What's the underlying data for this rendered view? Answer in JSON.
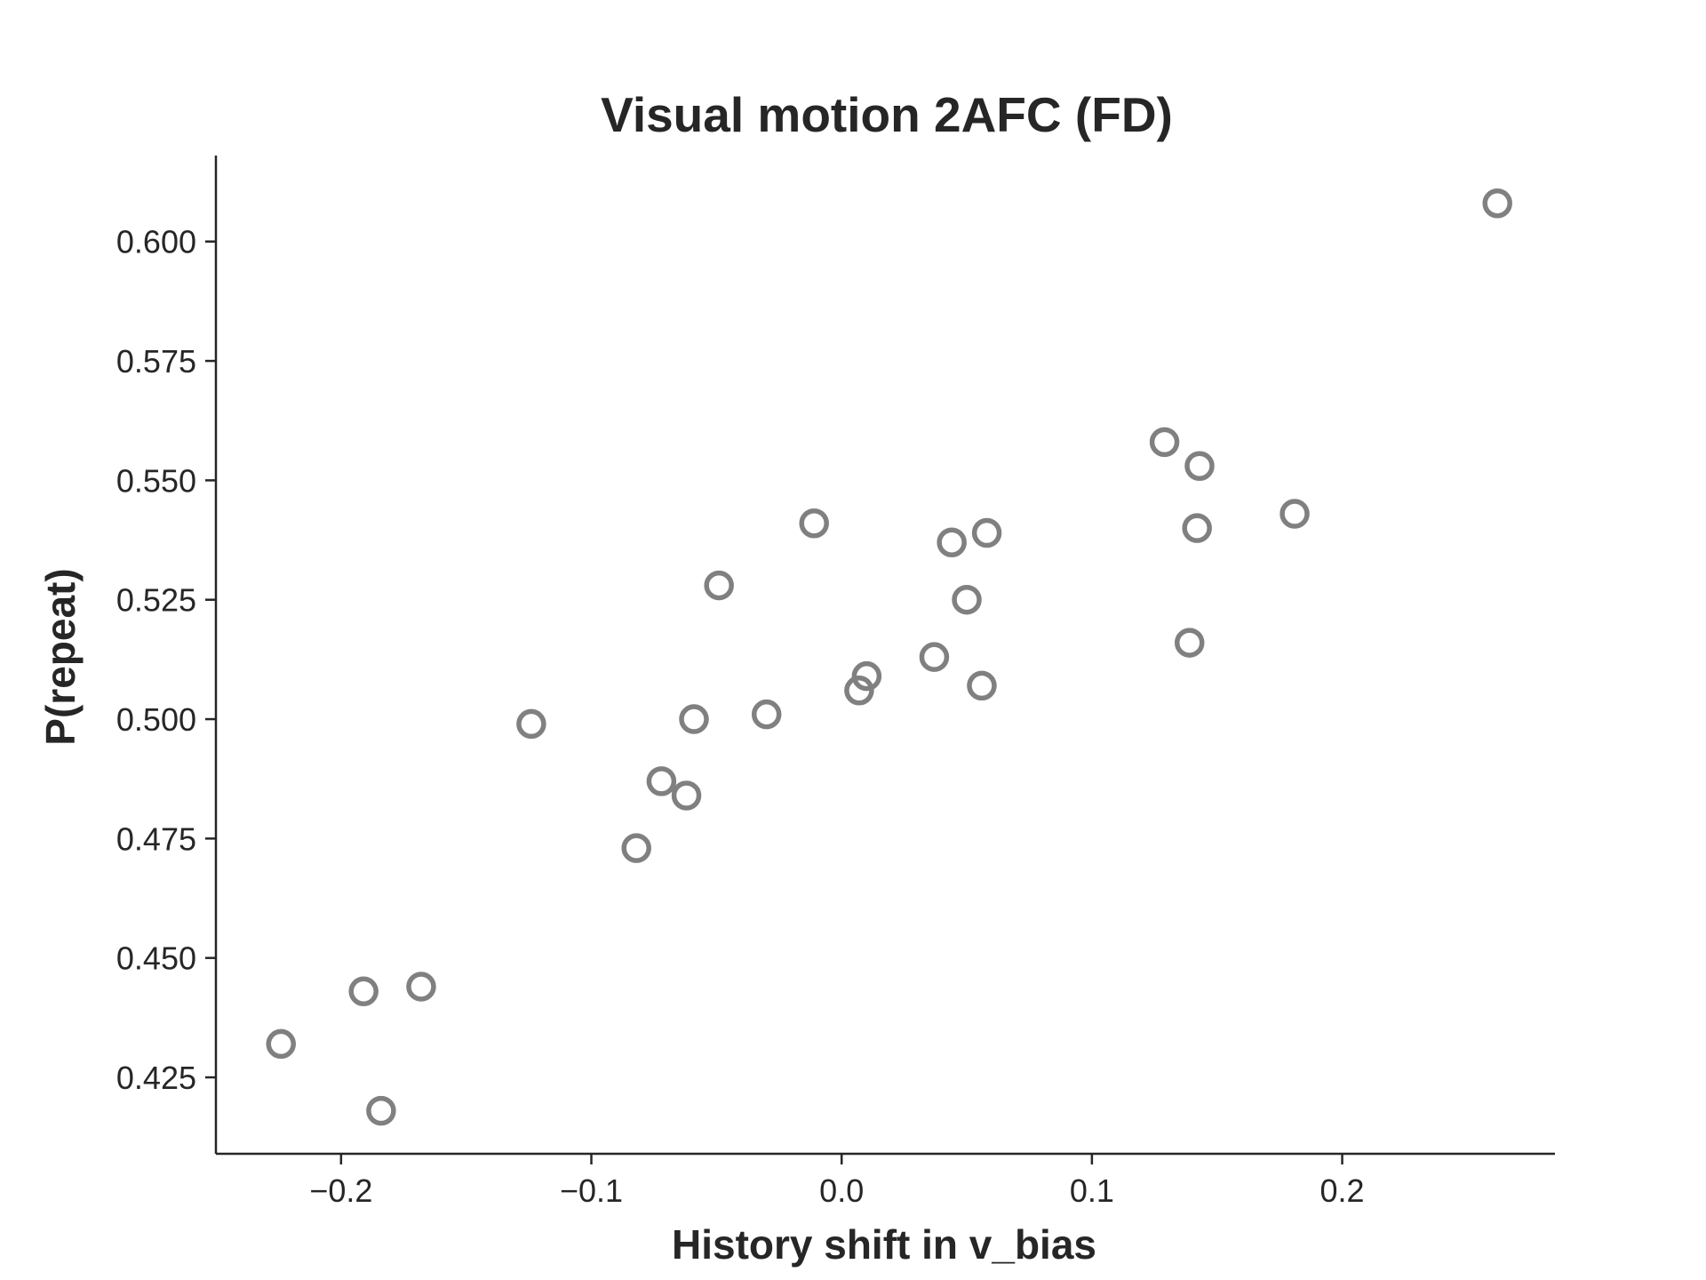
{
  "chart_data": {
    "type": "scatter",
    "title": "Visual motion 2AFC (FD)",
    "xlabel": "History shift in v_bias",
    "ylabel": "P(repeat)",
    "xlim": [
      -0.25,
      0.285
    ],
    "ylim": [
      0.409,
      0.618
    ],
    "xticks": [
      -0.2,
      -0.1,
      0.0,
      0.1,
      0.2
    ],
    "xtick_labels": [
      "−0.2",
      "−0.1",
      "0.0",
      "0.1",
      "0.2"
    ],
    "yticks": [
      0.425,
      0.45,
      0.475,
      0.5,
      0.525,
      0.55,
      0.575,
      0.6
    ],
    "ytick_labels": [
      "0.425",
      "0.450",
      "0.475",
      "0.500",
      "0.525",
      "0.550",
      "0.575",
      "0.600"
    ],
    "grid": false,
    "marker": "open-circle",
    "marker_color": "#808080",
    "axis_color": "#262626",
    "points": [
      {
        "x": -0.224,
        "y": 0.432
      },
      {
        "x": -0.191,
        "y": 0.443
      },
      {
        "x": -0.184,
        "y": 0.418
      },
      {
        "x": -0.168,
        "y": 0.444
      },
      {
        "x": -0.124,
        "y": 0.499
      },
      {
        "x": -0.082,
        "y": 0.473
      },
      {
        "x": -0.072,
        "y": 0.487
      },
      {
        "x": -0.062,
        "y": 0.484
      },
      {
        "x": -0.059,
        "y": 0.5
      },
      {
        "x": -0.049,
        "y": 0.528
      },
      {
        "x": -0.03,
        "y": 0.501
      },
      {
        "x": -0.011,
        "y": 0.541
      },
      {
        "x": 0.007,
        "y": 0.506
      },
      {
        "x": 0.01,
        "y": 0.509
      },
      {
        "x": 0.037,
        "y": 0.513
      },
      {
        "x": 0.044,
        "y": 0.537
      },
      {
        "x": 0.05,
        "y": 0.525
      },
      {
        "x": 0.056,
        "y": 0.507
      },
      {
        "x": 0.058,
        "y": 0.539
      },
      {
        "x": 0.129,
        "y": 0.558
      },
      {
        "x": 0.139,
        "y": 0.516
      },
      {
        "x": 0.142,
        "y": 0.54
      },
      {
        "x": 0.143,
        "y": 0.553
      },
      {
        "x": 0.181,
        "y": 0.543
      },
      {
        "x": 0.262,
        "y": 0.608
      }
    ]
  }
}
